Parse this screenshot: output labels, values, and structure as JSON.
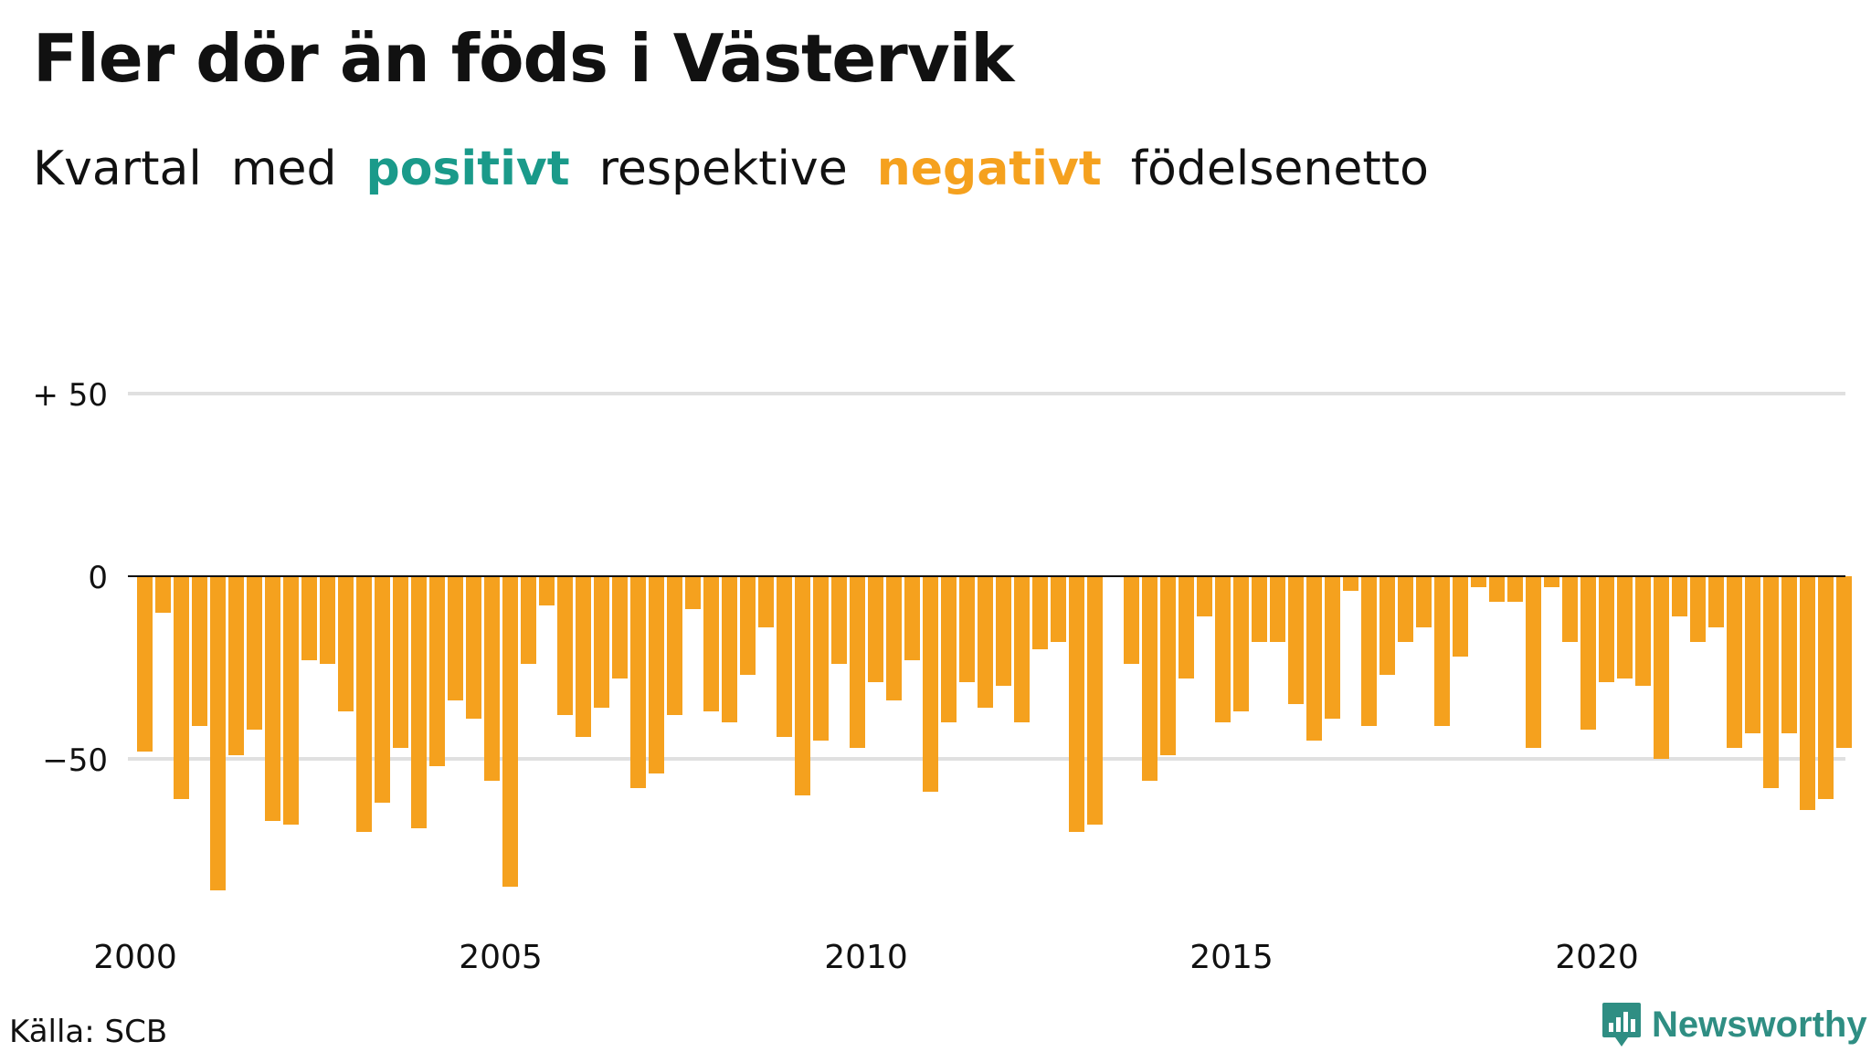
{
  "title": "Fler dör än föds i Västervik",
  "subtitle": {
    "w1": "Kvartal",
    "w2": "med",
    "positive": "positivt",
    "w3": "respektive",
    "negative": "negativt",
    "w4": "födelsenetto"
  },
  "colors": {
    "positive": "#1a9a8a",
    "negative": "#f5a11e",
    "brand": "#2f8e83"
  },
  "source": "Källa: SCB",
  "logo": {
    "text": "Newsworthy",
    "icon": "bar-chart-badge-icon"
  },
  "chart_data": {
    "type": "bar",
    "x_start": "2000 Q1",
    "values": [
      -48,
      -10,
      -61,
      -41,
      -86,
      -49,
      -42,
      -67,
      -68,
      -23,
      -24,
      -37,
      -70,
      -62,
      -47,
      -69,
      -52,
      -34,
      -39,
      -56,
      -85,
      -24,
      -8,
      -38,
      -44,
      -36,
      -28,
      -58,
      -54,
      -38,
      -9,
      -37,
      -40,
      -27,
      -14,
      -44,
      -60,
      -45,
      -24,
      -47,
      -29,
      -34,
      -23,
      -59,
      -40,
      -29,
      -36,
      -30,
      -40,
      -20,
      -18,
      -70,
      -68,
      0,
      -24,
      -56,
      -49,
      -28,
      -11,
      -40,
      -37,
      -18,
      -18,
      -35,
      -45,
      -39,
      -4,
      -41,
      -27,
      -18,
      -14,
      -41,
      -22,
      -3,
      -7,
      -7,
      -47,
      -3,
      -18,
      -42,
      -29,
      -28,
      -30,
      -50,
      -11,
      -18,
      -14,
      -47,
      -43,
      -58,
      -43,
      -64,
      -61,
      -47
    ],
    "xticks": [
      "2000",
      "2005",
      "2010",
      "2015",
      "2020"
    ],
    "ytick_labels": [
      "+ 50",
      "0",
      "−50"
    ],
    "ytick_values": [
      50,
      0,
      -50
    ],
    "ylim": [
      -95,
      60
    ],
    "grid": true
  }
}
